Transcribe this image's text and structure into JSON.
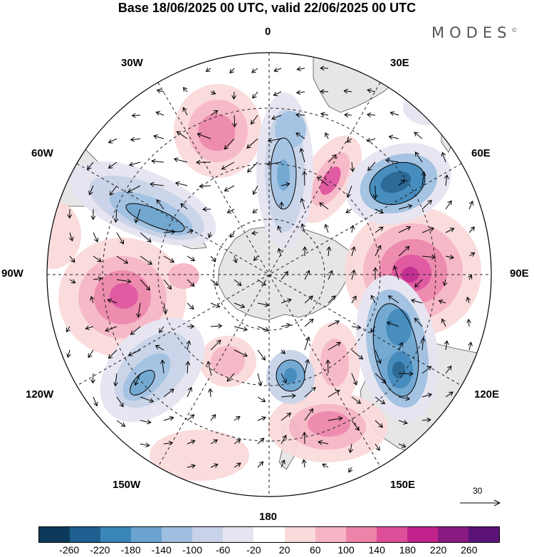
{
  "title": "Base 18/06/2025 00 UTC, valid 22/06/2025 00 UTC",
  "brand": "MODES",
  "brand_mark": "©",
  "longitude_labels": {
    "n0": "0",
    "n30e": "30E",
    "n60e": "60E",
    "n90e": "90E",
    "n120e": "120E",
    "n150e": "150E",
    "n180": "180",
    "n150w": "150W",
    "n120w": "120W",
    "n90w": "90W",
    "n60w": "60W",
    "n30w": "30W"
  },
  "reference_vector": "30",
  "colorbar": {
    "colors": [
      "#0d3a5c",
      "#1e5f8f",
      "#3a85ba",
      "#6aa4cf",
      "#9fbfe0",
      "#c8d2e8",
      "#e6e4f0",
      "#ffffff",
      "#fadada",
      "#f6b4c4",
      "#ec84aa",
      "#de4f9a",
      "#c0218a",
      "#8a1a82",
      "#5b1377"
    ],
    "ticks": [
      "-260",
      "-220",
      "-180",
      "-140",
      "-100",
      "-60",
      "-20",
      "20",
      "60",
      "100",
      "140",
      "180",
      "220",
      "260"
    ]
  },
  "colors": {
    "land": "#e6e6e6",
    "ocean": "#ffffff",
    "coast": "#555555"
  }
}
